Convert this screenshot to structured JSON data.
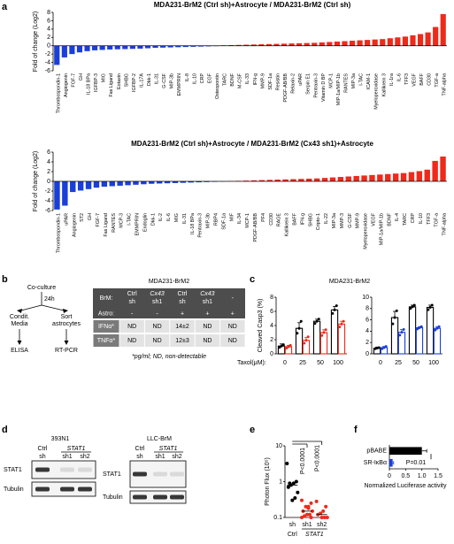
{
  "panel_labels": [
    "a",
    "b",
    "c",
    "d",
    "e",
    "f"
  ],
  "chart_data": [
    {
      "type": "bar",
      "title": "MDA231-BrM2 (Ctrl sh)+Astrocyte / MDA231-BrM2 (Ctrl sh)",
      "ylabel": "Fold of change (Log2)",
      "categories": [
        "Thrombospondin-1",
        "Angiogenin",
        "FGF-7",
        "GH",
        "IL-18 BPa",
        "IGFBP-3",
        "MIG",
        "Fas Ligand",
        "Eotaxin",
        "SHBG",
        "IGFBP-2",
        "IL-17A",
        "Dkk-1",
        "IL-31",
        "G-CSF",
        "MIP-3b",
        "EMMPRIN",
        "IL-8",
        "IL-10",
        "CRP",
        "EGF",
        "Osteopontin",
        "TARC",
        "BDNF",
        "M-CSF",
        "IL-33",
        "IFN-g",
        "MMP-9",
        "SDF-1a",
        "Resistin",
        "PDGF-AB/BB",
        "Relaxin-2",
        "uPAR",
        "Serpin E1",
        "Pentraxin-3",
        "Vitamin D BP",
        "MCP-1",
        "MIP-1a/MIP-1b",
        "RANTES",
        "MIP-3a",
        "I-TAC",
        "ICAM-1",
        "Myeloperoxidase",
        "Kallikrein 3",
        "IL-1ra",
        "IL-6",
        "TFF3",
        "VEGF",
        "BAFF",
        "CD30",
        "TGF-a",
        "TNF-alpha"
      ],
      "values": [
        -4.6,
        -2.8,
        -2.0,
        -1.6,
        -1.3,
        -1.1,
        -1.0,
        -0.9,
        -0.85,
        -0.8,
        -0.75,
        -0.7,
        -0.6,
        -0.5,
        -0.45,
        -0.4,
        -0.35,
        -0.3,
        -0.25,
        -0.2,
        -0.15,
        -0.1,
        0.1,
        0.15,
        0.2,
        0.25,
        0.3,
        0.35,
        0.4,
        0.45,
        0.5,
        0.55,
        0.6,
        0.65,
        0.7,
        0.8,
        0.9,
        1.0,
        1.1,
        1.2,
        1.3,
        1.4,
        1.5,
        1.6,
        1.8,
        2.0,
        2.2,
        2.5,
        2.8,
        3.2,
        4.5,
        7.6
      ],
      "colors": {
        "negative": "#1a3fd9",
        "positive": "#ee2a1b"
      },
      "ylim": [
        -6,
        8
      ],
      "yticks": [
        -6,
        -4,
        -2,
        0,
        2,
        4,
        6,
        8
      ]
    },
    {
      "type": "bar",
      "title": "MDA231-BrM2 (Ctrl sh)+Astrocyte / MDA231-BrM2 (Cx43 sh1)+Astrocyte",
      "ylabel": "Fold of change (Log2)",
      "categories": [
        "Thrombospondin-1",
        "uPAR",
        "Angiogenin",
        "ST2",
        "GH",
        "FGF-7",
        "Fas Ligand",
        "RANTES",
        "MCP-3",
        "I-TAC",
        "EMMPRIN",
        "Endoglin",
        "Dkk-1",
        "IL-2",
        "IL-6",
        "MIG",
        "IL-31",
        "IL-18 BPa",
        "Pentraxin-3",
        "MIP-3b",
        "RBP4",
        "SDF-1a",
        "MIF",
        "IL-34",
        "MCP-1",
        "PDGF-AB/BB",
        "PF4",
        "CD30",
        "RAGE",
        "Kallikrein 3",
        "BAFF",
        "IFN-g",
        "SHBG",
        "Cripto-1",
        "IL-22",
        "MIP-3a",
        "MMP-3",
        "G-CSF",
        "MMP-9",
        "Myeloperoxidase",
        "VEGF",
        "MIP-1a/MIP-1b",
        "BDNF",
        "IL-4",
        "TARC",
        "CRP",
        "IL-10",
        "TFF3",
        "TGF-a",
        "TNF-alpha"
      ],
      "values": [
        -5.8,
        -5.0,
        -2.2,
        -1.9,
        -1.6,
        -1.3,
        -1.1,
        -1.0,
        -0.9,
        -0.8,
        -0.7,
        -0.6,
        -0.5,
        -0.45,
        -0.4,
        -0.35,
        -0.3,
        -0.25,
        -0.2,
        -0.15,
        -0.1,
        -0.05,
        0.05,
        0.1,
        0.15,
        0.2,
        0.25,
        0.3,
        0.35,
        0.4,
        0.45,
        0.5,
        0.55,
        0.6,
        0.7,
        0.8,
        0.9,
        1.0,
        1.1,
        1.2,
        1.3,
        1.4,
        1.5,
        1.6,
        1.7,
        1.9,
        2.1,
        2.4,
        4.2,
        5.1
      ],
      "colors": {
        "negative": "#1a3fd9",
        "positive": "#ee2a1b"
      },
      "ylim": [
        -6,
        6
      ],
      "yticks": [
        -6,
        -4,
        -2,
        0,
        2,
        4,
        6
      ]
    },
    {
      "type": "grouped_bar",
      "title": "MDA231-BrM2",
      "ylabel": "Cleaved Casp3 (%)",
      "xlabel": "Taxol(μM):",
      "categories": [
        "0",
        "25",
        "50",
        "100"
      ],
      "series": [
        {
          "color": "#000000",
          "values": [
            1.1,
            3.6,
            4.6,
            6.2
          ],
          "errors": [
            0.3,
            0.8,
            0.3,
            0.5
          ],
          "points": [
            [
              0.9,
              1.1,
              1.3
            ],
            [
              2.9,
              3.6,
              4.6
            ],
            [
              4.3,
              4.6,
              4.9
            ],
            [
              5.7,
              6.2,
              6.8
            ]
          ]
        },
        {
          "color": "#ee2a1b",
          "values": [
            1.0,
            1.9,
            3.0,
            4.2
          ],
          "errors": [
            0.2,
            0.4,
            0.4,
            0.4
          ],
          "points": [
            [
              0.8,
              1.0,
              1.2
            ],
            [
              1.5,
              1.9,
              2.4
            ],
            [
              2.6,
              3.0,
              3.4
            ],
            [
              3.8,
              4.2,
              4.6
            ]
          ]
        }
      ],
      "ylim": [
        0,
        8
      ],
      "yticks": [
        0,
        2,
        4,
        6,
        8
      ]
    },
    {
      "type": "grouped_bar",
      "categories": [
        "0",
        "25",
        "50",
        "100"
      ],
      "series": [
        {
          "color": "#000000",
          "values": [
            1.0,
            6.4,
            8.3,
            8.2
          ],
          "errors": [
            0.2,
            1.1,
            0.3,
            0.4
          ],
          "points": [
            [
              0.9,
              1.0,
              1.1
            ],
            [
              5.3,
              6.4,
              7.6
            ],
            [
              8.0,
              8.3,
              8.6
            ],
            [
              7.8,
              8.2,
              8.6
            ]
          ]
        },
        {
          "color": "#1a3fd9",
          "values": [
            1.1,
            3.8,
            4.6,
            4.5
          ],
          "errors": [
            0.2,
            0.5,
            0.2,
            0.3
          ],
          "points": [
            [
              0.9,
              1.1,
              1.3
            ],
            [
              3.3,
              3.8,
              4.3
            ],
            [
              4.4,
              4.6,
              4.8
            ],
            [
              4.2,
              4.5,
              4.8
            ]
          ]
        }
      ],
      "ylim": [
        0,
        10
      ],
      "yticks": [
        0,
        2,
        4,
        6,
        8,
        10
      ]
    },
    {
      "type": "dot",
      "ylabel": "Photon Flux (10⁵)",
      "log_y": true,
      "categories": [
        "sh",
        "sh1",
        "sh2"
      ],
      "group_labels": [
        "Ctrl",
        "STAT1"
      ],
      "points": [
        [
          3.2,
          1.0,
          0.9,
          0.8,
          0.7,
          0.5,
          0.35,
          0.3,
          0.9
        ],
        [
          0.3,
          0.25,
          0.2,
          0.2,
          0.15,
          0.15,
          0.12,
          0.12,
          0.11,
          0.1,
          0.1,
          0.18
        ],
        [
          0.28,
          0.2,
          0.15,
          0.13,
          0.12,
          0.1,
          0.1,
          0.1
        ]
      ],
      "medians": [
        0.8,
        0.15,
        0.12
      ],
      "colors": [
        "#000000",
        "#ee2a1b",
        "#ee2a1b"
      ],
      "annotations": [
        "P<0.0001",
        "P<0.0001"
      ],
      "ylim": [
        0.1,
        10
      ],
      "yticks": [
        0.1,
        1,
        10
      ]
    },
    {
      "type": "hbar",
      "xlabel": "Normalized Luciferase activity",
      "categories": [
        "pBABE",
        "SR-IκBα"
      ],
      "values": [
        1.0,
        0.1
      ],
      "errors": [
        0.15,
        0.03
      ],
      "colors": [
        "#000000",
        "#1a3fd9"
      ],
      "annotations": [
        "P=0.01"
      ],
      "xlim": [
        0,
        1.5
      ],
      "xticks": [
        0,
        0.5,
        {
          "value": 1,
          "label": "1.0"
        },
        1.5
      ]
    }
  ],
  "diagram": {
    "coculture": "Co-culture",
    "time": "24h",
    "media": [
      "Condit.",
      "Media"
    ],
    "sort": [
      "Sort",
      "astrocytes"
    ],
    "elisa": "ELISA",
    "rtpcr": "RT-PCR"
  },
  "table": {
    "title": "MDA231-BrM2",
    "header": [
      [
        "BrM:",
        [
          "Ctrl",
          "sh"
        ],
        [
          "Cx43",
          "sh1"
        ],
        [
          "Ctrl",
          "sh"
        ],
        [
          "Cx43",
          "sh1"
        ],
        "-"
      ],
      [
        "Astro:",
        "-",
        "-",
        "+",
        "+",
        "+"
      ]
    ],
    "rows": [
      [
        "IFNα*",
        "ND",
        "ND",
        "14±2",
        "ND",
        "ND"
      ],
      [
        "TNFα*",
        "ND",
        "ND",
        "12±3",
        "ND",
        "ND"
      ]
    ],
    "footnote": "*pg/ml; ND, non-detectable"
  },
  "blots": [
    {
      "title": "393N1",
      "groups": [
        "Ctrl",
        "STAT1"
      ],
      "lanes": [
        "sh",
        "sh1",
        "sh2"
      ],
      "rows": [
        "STAT1",
        "Tubulin"
      ]
    },
    {
      "title": "LLC-BrM",
      "groups": [
        "Ctrl",
        "STAT1"
      ],
      "lanes": [
        "sh",
        "sh1",
        "sh2"
      ],
      "rows": [
        "STAT1",
        "Tubulin"
      ]
    }
  ]
}
